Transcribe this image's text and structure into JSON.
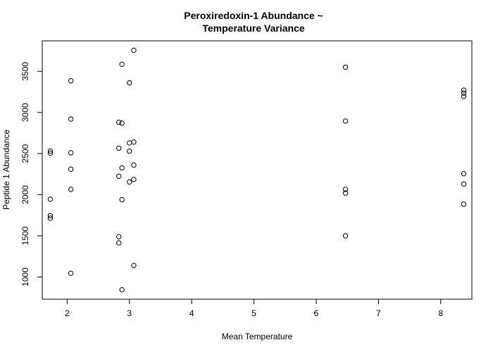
{
  "chart_data": {
    "type": "scatter",
    "title": [
      "Peroxiredoxin-1 Abundance ~",
      "Temperature Variance"
    ],
    "xlabel": "Mean Temperature",
    "ylabel": "Peptide 1 Abundance",
    "xlim": [
      1.6,
      8.5
    ],
    "ylim": [
      730,
      3870
    ],
    "xticks": [
      2,
      3,
      4,
      5,
      6,
      7,
      8
    ],
    "yticks": [
      1000,
      1500,
      2000,
      2500,
      3000,
      3500
    ],
    "grid": false,
    "legend": "none",
    "series": [
      {
        "points": [
          [
            1.73,
            2530
          ],
          [
            1.73,
            2505
          ],
          [
            1.73,
            1945
          ],
          [
            1.73,
            1745
          ],
          [
            1.73,
            1715
          ],
          [
            2.06,
            3385
          ],
          [
            2.06,
            2920
          ],
          [
            2.06,
            2510
          ],
          [
            2.06,
            2310
          ],
          [
            2.06,
            2065
          ],
          [
            2.06,
            1045
          ],
          [
            2.83,
            2880
          ],
          [
            2.83,
            2565
          ],
          [
            2.83,
            2225
          ],
          [
            2.83,
            1490
          ],
          [
            2.83,
            1415
          ],
          [
            2.88,
            3585
          ],
          [
            2.88,
            2870
          ],
          [
            2.88,
            2325
          ],
          [
            2.88,
            1940
          ],
          [
            2.88,
            845
          ],
          [
            3.0,
            3360
          ],
          [
            3.0,
            2630
          ],
          [
            3.0,
            2530
          ],
          [
            3.0,
            2155
          ],
          [
            3.07,
            3755
          ],
          [
            3.07,
            2640
          ],
          [
            3.07,
            2360
          ],
          [
            3.07,
            2185
          ],
          [
            3.07,
            1140
          ],
          [
            6.47,
            3550
          ],
          [
            6.47,
            2895
          ],
          [
            6.47,
            2065
          ],
          [
            6.47,
            2020
          ],
          [
            6.47,
            1500
          ],
          [
            8.37,
            3270
          ],
          [
            8.37,
            3235
          ],
          [
            8.37,
            3195
          ],
          [
            8.37,
            2255
          ],
          [
            8.37,
            2130
          ],
          [
            8.37,
            1885
          ]
        ]
      }
    ]
  }
}
